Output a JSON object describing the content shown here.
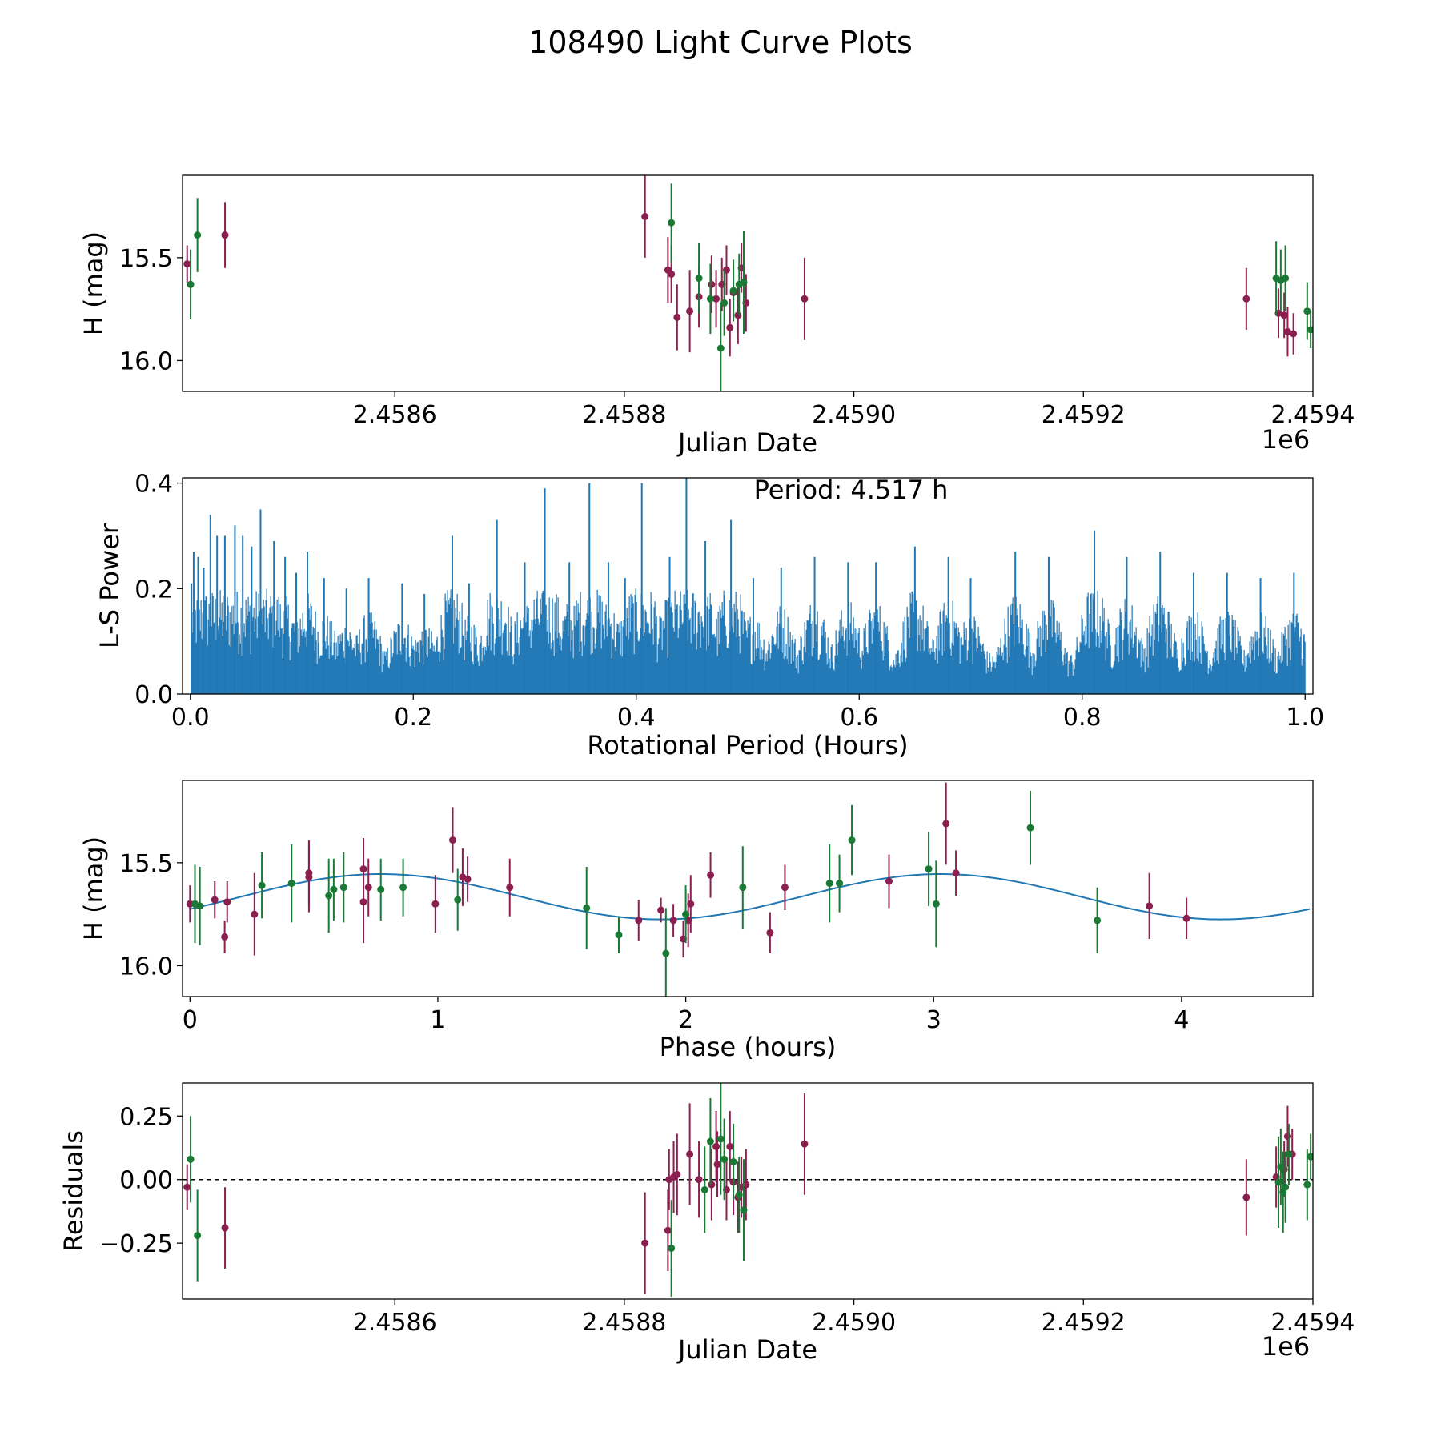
{
  "figure_title": "108490 Light Curve Plots",
  "colors": {
    "band_g": "#8b1f4f",
    "band_o": "#1a7a35",
    "model": "#1f77b4",
    "periodogram": "#1f77b4"
  },
  "chart_data": [
    {
      "id": "lightcurve",
      "type": "scatter",
      "xlabel": "Julian Date",
      "ylabel": "H (mag)",
      "x_offset_label": "1e6",
      "xlim": [
        2458415,
        2459400
      ],
      "ylim": [
        16.15,
        15.1
      ],
      "xticks": [
        2458600,
        2458800,
        2459000,
        2459200,
        2459400
      ],
      "xtick_labels": [
        "2.4586",
        "2.4588",
        "2.4590",
        "2.4592",
        "2.4594"
      ],
      "yticks": [
        16.0,
        15.5
      ],
      "ytick_labels": [
        "16.0",
        "15.5"
      ],
      "series": [
        {
          "name": "g",
          "color_key": "band_g",
          "points": [
            [
              2458419,
              15.53,
              0.09
            ],
            [
              2458452,
              15.39,
              0.16
            ],
            [
              2458818,
              15.3,
              0.2
            ],
            [
              2458838,
              15.56,
              0.16
            ],
            [
              2458841,
              15.58,
              0.14
            ],
            [
              2458846,
              15.79,
              0.16
            ],
            [
              2458857,
              15.76,
              0.2
            ],
            [
              2458865,
              15.69,
              0.15
            ],
            [
              2458876,
              15.63,
              0.14
            ],
            [
              2458880,
              15.7,
              0.14
            ],
            [
              2458885,
              15.63,
              0.13
            ],
            [
              2458889,
              15.56,
              0.12
            ],
            [
              2458892,
              15.84,
              0.14
            ],
            [
              2458895,
              15.67,
              0.13
            ],
            [
              2458899,
              15.78,
              0.14
            ],
            [
              2458902,
              15.55,
              0.12
            ],
            [
              2458906,
              15.72,
              0.14
            ],
            [
              2458957,
              15.7,
              0.2
            ],
            [
              2459342,
              15.7,
              0.15
            ],
            [
              2459370,
              15.77,
              0.12
            ],
            [
              2459375,
              15.78,
              0.11
            ],
            [
              2459378,
              15.86,
              0.12
            ],
            [
              2459383,
              15.87,
              0.1
            ]
          ]
        },
        {
          "name": "o",
          "color_key": "band_o",
          "points": [
            [
              2458422,
              15.63,
              0.17
            ],
            [
              2458428,
              15.39,
              0.18
            ],
            [
              2458841,
              15.33,
              0.19
            ],
            [
              2458865,
              15.6,
              0.17
            ],
            [
              2458875,
              15.7,
              0.17
            ],
            [
              2458884,
              15.94,
              0.22
            ],
            [
              2458887,
              15.72,
              0.16
            ],
            [
              2458895,
              15.66,
              0.15
            ],
            [
              2458900,
              15.63,
              0.15
            ],
            [
              2458904,
              15.62,
              0.25
            ],
            [
              2459368,
              15.6,
              0.18
            ],
            [
              2459372,
              15.61,
              0.15
            ],
            [
              2459376,
              15.6,
              0.16
            ],
            [
              2459395,
              15.76,
              0.14
            ],
            [
              2459398,
              15.85,
              0.09
            ]
          ]
        }
      ]
    },
    {
      "id": "periodogram",
      "type": "line",
      "xlabel": "Rotational Period (Hours)",
      "ylabel": "L-S Power",
      "annotation": "Period: 4.517 h",
      "xlim": [
        -0.007,
        1.007
      ],
      "ylim": [
        0,
        0.41
      ],
      "xticks": [
        0,
        0.2,
        0.4,
        0.6,
        0.8,
        1.0
      ],
      "xtick_labels": [
        "0.0",
        "0.2",
        "0.4",
        "0.6",
        "0.8",
        "1.0"
      ],
      "yticks": [
        0,
        0.2,
        0.4
      ],
      "ytick_labels": [
        "0.0",
        "0.2",
        "0.4"
      ],
      "peaks": [
        [
          0.001,
          0.21
        ],
        [
          0.003,
          0.27
        ],
        [
          0.007,
          0.26
        ],
        [
          0.012,
          0.24
        ],
        [
          0.018,
          0.34
        ],
        [
          0.024,
          0.3
        ],
        [
          0.031,
          0.3
        ],
        [
          0.04,
          0.32
        ],
        [
          0.047,
          0.3
        ],
        [
          0.055,
          0.28
        ],
        [
          0.063,
          0.35
        ],
        [
          0.075,
          0.29
        ],
        [
          0.085,
          0.26
        ],
        [
          0.095,
          0.23
        ],
        [
          0.105,
          0.27
        ],
        [
          0.12,
          0.22
        ],
        [
          0.14,
          0.2
        ],
        [
          0.16,
          0.22
        ],
        [
          0.19,
          0.21
        ],
        [
          0.21,
          0.19
        ],
        [
          0.235,
          0.3
        ],
        [
          0.25,
          0.21
        ],
        [
          0.275,
          0.33
        ],
        [
          0.3,
          0.25
        ],
        [
          0.318,
          0.39
        ],
        [
          0.34,
          0.25
        ],
        [
          0.358,
          0.4
        ],
        [
          0.375,
          0.25
        ],
        [
          0.39,
          0.22
        ],
        [
          0.405,
          0.4
        ],
        [
          0.43,
          0.26
        ],
        [
          0.445,
          0.41
        ],
        [
          0.462,
          0.29
        ],
        [
          0.485,
          0.33
        ],
        [
          0.505,
          0.22
        ],
        [
          0.53,
          0.24
        ],
        [
          0.56,
          0.26
        ],
        [
          0.59,
          0.25
        ],
        [
          0.615,
          0.25
        ],
        [
          0.65,
          0.28
        ],
        [
          0.68,
          0.26
        ],
        [
          0.7,
          0.22
        ],
        [
          0.74,
          0.27
        ],
        [
          0.77,
          0.26
        ],
        [
          0.811,
          0.31
        ],
        [
          0.84,
          0.26
        ],
        [
          0.87,
          0.27
        ],
        [
          0.9,
          0.23
        ],
        [
          0.93,
          0.23
        ],
        [
          0.96,
          0.22
        ],
        [
          0.99,
          0.23
        ]
      ]
    },
    {
      "id": "phased",
      "type": "scatter",
      "xlabel": "Phase (hours)",
      "ylabel": "H (mag)",
      "xlim": [
        -0.03,
        4.53
      ],
      "ylim": [
        16.15,
        15.1
      ],
      "xticks": [
        0,
        1,
        2,
        3,
        4
      ],
      "xtick_labels": [
        "0",
        "1",
        "2",
        "3",
        "4"
      ],
      "yticks": [
        16.0,
        15.5
      ],
      "ytick_labels": [
        "16.0",
        "15.5"
      ],
      "model": {
        "mean": 15.665,
        "amplitude": 0.11,
        "period": 2.2585,
        "phase_of_max": 1.9,
        "x_end": 4.517
      },
      "series": [
        {
          "name": "g",
          "color_key": "band_g",
          "points": [
            [
              0.0,
              15.7,
              0.09
            ],
            [
              0.1,
              15.68,
              0.09
            ],
            [
              0.14,
              15.86,
              0.08
            ],
            [
              0.15,
              15.69,
              0.1
            ],
            [
              0.26,
              15.75,
              0.2
            ],
            [
              0.48,
              15.57,
              0.17
            ],
            [
              0.48,
              15.55,
              0.16
            ],
            [
              0.7,
              15.69,
              0.2
            ],
            [
              0.7,
              15.53,
              0.15
            ],
            [
              0.72,
              15.62,
              0.14
            ],
            [
              0.99,
              15.7,
              0.14
            ],
            [
              1.06,
              15.39,
              0.16
            ],
            [
              1.1,
              15.57,
              0.14
            ],
            [
              1.12,
              15.58,
              0.11
            ],
            [
              1.29,
              15.62,
              0.14
            ],
            [
              1.81,
              15.78,
              0.1
            ],
            [
              1.9,
              15.73,
              0.06
            ],
            [
              1.95,
              15.78,
              0.08
            ],
            [
              1.99,
              15.87,
              0.09
            ],
            [
              2.01,
              15.78,
              0.13
            ],
            [
              2.02,
              15.7,
              0.14
            ],
            [
              2.1,
              15.56,
              0.11
            ],
            [
              2.34,
              15.84,
              0.1
            ],
            [
              2.4,
              15.62,
              0.11
            ],
            [
              2.82,
              15.59,
              0.13
            ],
            [
              3.05,
              15.31,
              0.2
            ],
            [
              3.09,
              15.55,
              0.11
            ],
            [
              3.87,
              15.71,
              0.16
            ],
            [
              4.02,
              15.77,
              0.1
            ]
          ]
        },
        {
          "name": "o",
          "color_key": "band_o",
          "points": [
            [
              0.02,
              15.7,
              0.19
            ],
            [
              0.04,
              15.71,
              0.19
            ],
            [
              0.29,
              15.61,
              0.16
            ],
            [
              0.41,
              15.6,
              0.19
            ],
            [
              0.56,
              15.66,
              0.18
            ],
            [
              0.58,
              15.63,
              0.15
            ],
            [
              0.62,
              15.62,
              0.17
            ],
            [
              0.77,
              15.63,
              0.15
            ],
            [
              0.86,
              15.62,
              0.14
            ],
            [
              1.08,
              15.68,
              0.15
            ],
            [
              1.6,
              15.72,
              0.2
            ],
            [
              1.73,
              15.85,
              0.09
            ],
            [
              1.92,
              15.94,
              0.22
            ],
            [
              2.0,
              15.75,
              0.14
            ],
            [
              2.23,
              15.62,
              0.2
            ],
            [
              2.58,
              15.6,
              0.19
            ],
            [
              2.62,
              15.6,
              0.14
            ],
            [
              2.67,
              15.39,
              0.17
            ],
            [
              2.98,
              15.53,
              0.18
            ],
            [
              3.01,
              15.7,
              0.21
            ],
            [
              3.39,
              15.33,
              0.18
            ],
            [
              3.66,
              15.78,
              0.16
            ]
          ]
        }
      ]
    },
    {
      "id": "residuals",
      "type": "scatter",
      "xlabel": "Julian Date",
      "ylabel": "Residuals",
      "x_offset_label": "1e6",
      "xlim": [
        2458415,
        2459400
      ],
      "ylim": [
        -0.47,
        0.38
      ],
      "xticks": [
        2458600,
        2458800,
        2459000,
        2459200,
        2459400
      ],
      "xtick_labels": [
        "2.4586",
        "2.4588",
        "2.4590",
        "2.4592",
        "2.4594"
      ],
      "yticks": [
        0.25,
        0.0,
        -0.25
      ],
      "ytick_labels": [
        "0.25",
        "0.00",
        "−0.25"
      ],
      "zero_line": true,
      "series": [
        {
          "name": "g",
          "color_key": "band_g",
          "points": [
            [
              2458419,
              -0.03,
              0.09
            ],
            [
              2458452,
              -0.19,
              0.16
            ],
            [
              2458818,
              -0.25,
              0.2
            ],
            [
              2458838,
              -0.2,
              0.16
            ],
            [
              2458839,
              0.0,
              0.12
            ],
            [
              2458843,
              0.01,
              0.14
            ],
            [
              2458846,
              0.02,
              0.16
            ],
            [
              2458857,
              0.1,
              0.2
            ],
            [
              2458865,
              0.0,
              0.15
            ],
            [
              2458876,
              -0.02,
              0.14
            ],
            [
              2458880,
              0.13,
              0.14
            ],
            [
              2458881,
              0.06,
              0.13
            ],
            [
              2458889,
              -0.04,
              0.12
            ],
            [
              2458892,
              0.13,
              0.14
            ],
            [
              2458895,
              -0.01,
              0.13
            ],
            [
              2458899,
              -0.07,
              0.14
            ],
            [
              2458902,
              -0.03,
              0.12
            ],
            [
              2458906,
              -0.02,
              0.14
            ],
            [
              2458957,
              0.14,
              0.2
            ],
            [
              2459342,
              -0.07,
              0.15
            ],
            [
              2459368,
              0.01,
              0.12
            ],
            [
              2459375,
              0.04,
              0.11
            ],
            [
              2459378,
              0.17,
              0.12
            ],
            [
              2459382,
              0.1,
              0.1
            ]
          ]
        },
        {
          "name": "o",
          "color_key": "band_o",
          "points": [
            [
              2458422,
              0.08,
              0.17
            ],
            [
              2458428,
              -0.22,
              0.18
            ],
            [
              2458841,
              -0.27,
              0.19
            ],
            [
              2458870,
              -0.04,
              0.17
            ],
            [
              2458875,
              0.15,
              0.17
            ],
            [
              2458884,
              0.16,
              0.22
            ],
            [
              2458887,
              0.08,
              0.16
            ],
            [
              2458895,
              0.07,
              0.15
            ],
            [
              2458900,
              -0.06,
              0.15
            ],
            [
              2458904,
              -0.12,
              0.2
            ],
            [
              2459370,
              -0.01,
              0.18
            ],
            [
              2459372,
              0.05,
              0.15
            ],
            [
              2459374,
              -0.05,
              0.16
            ],
            [
              2459376,
              -0.03,
              0.14
            ],
            [
              2459379,
              0.1,
              0.12
            ],
            [
              2459395,
              -0.02,
              0.14
            ],
            [
              2459398,
              0.09,
              0.09
            ]
          ]
        }
      ]
    }
  ]
}
